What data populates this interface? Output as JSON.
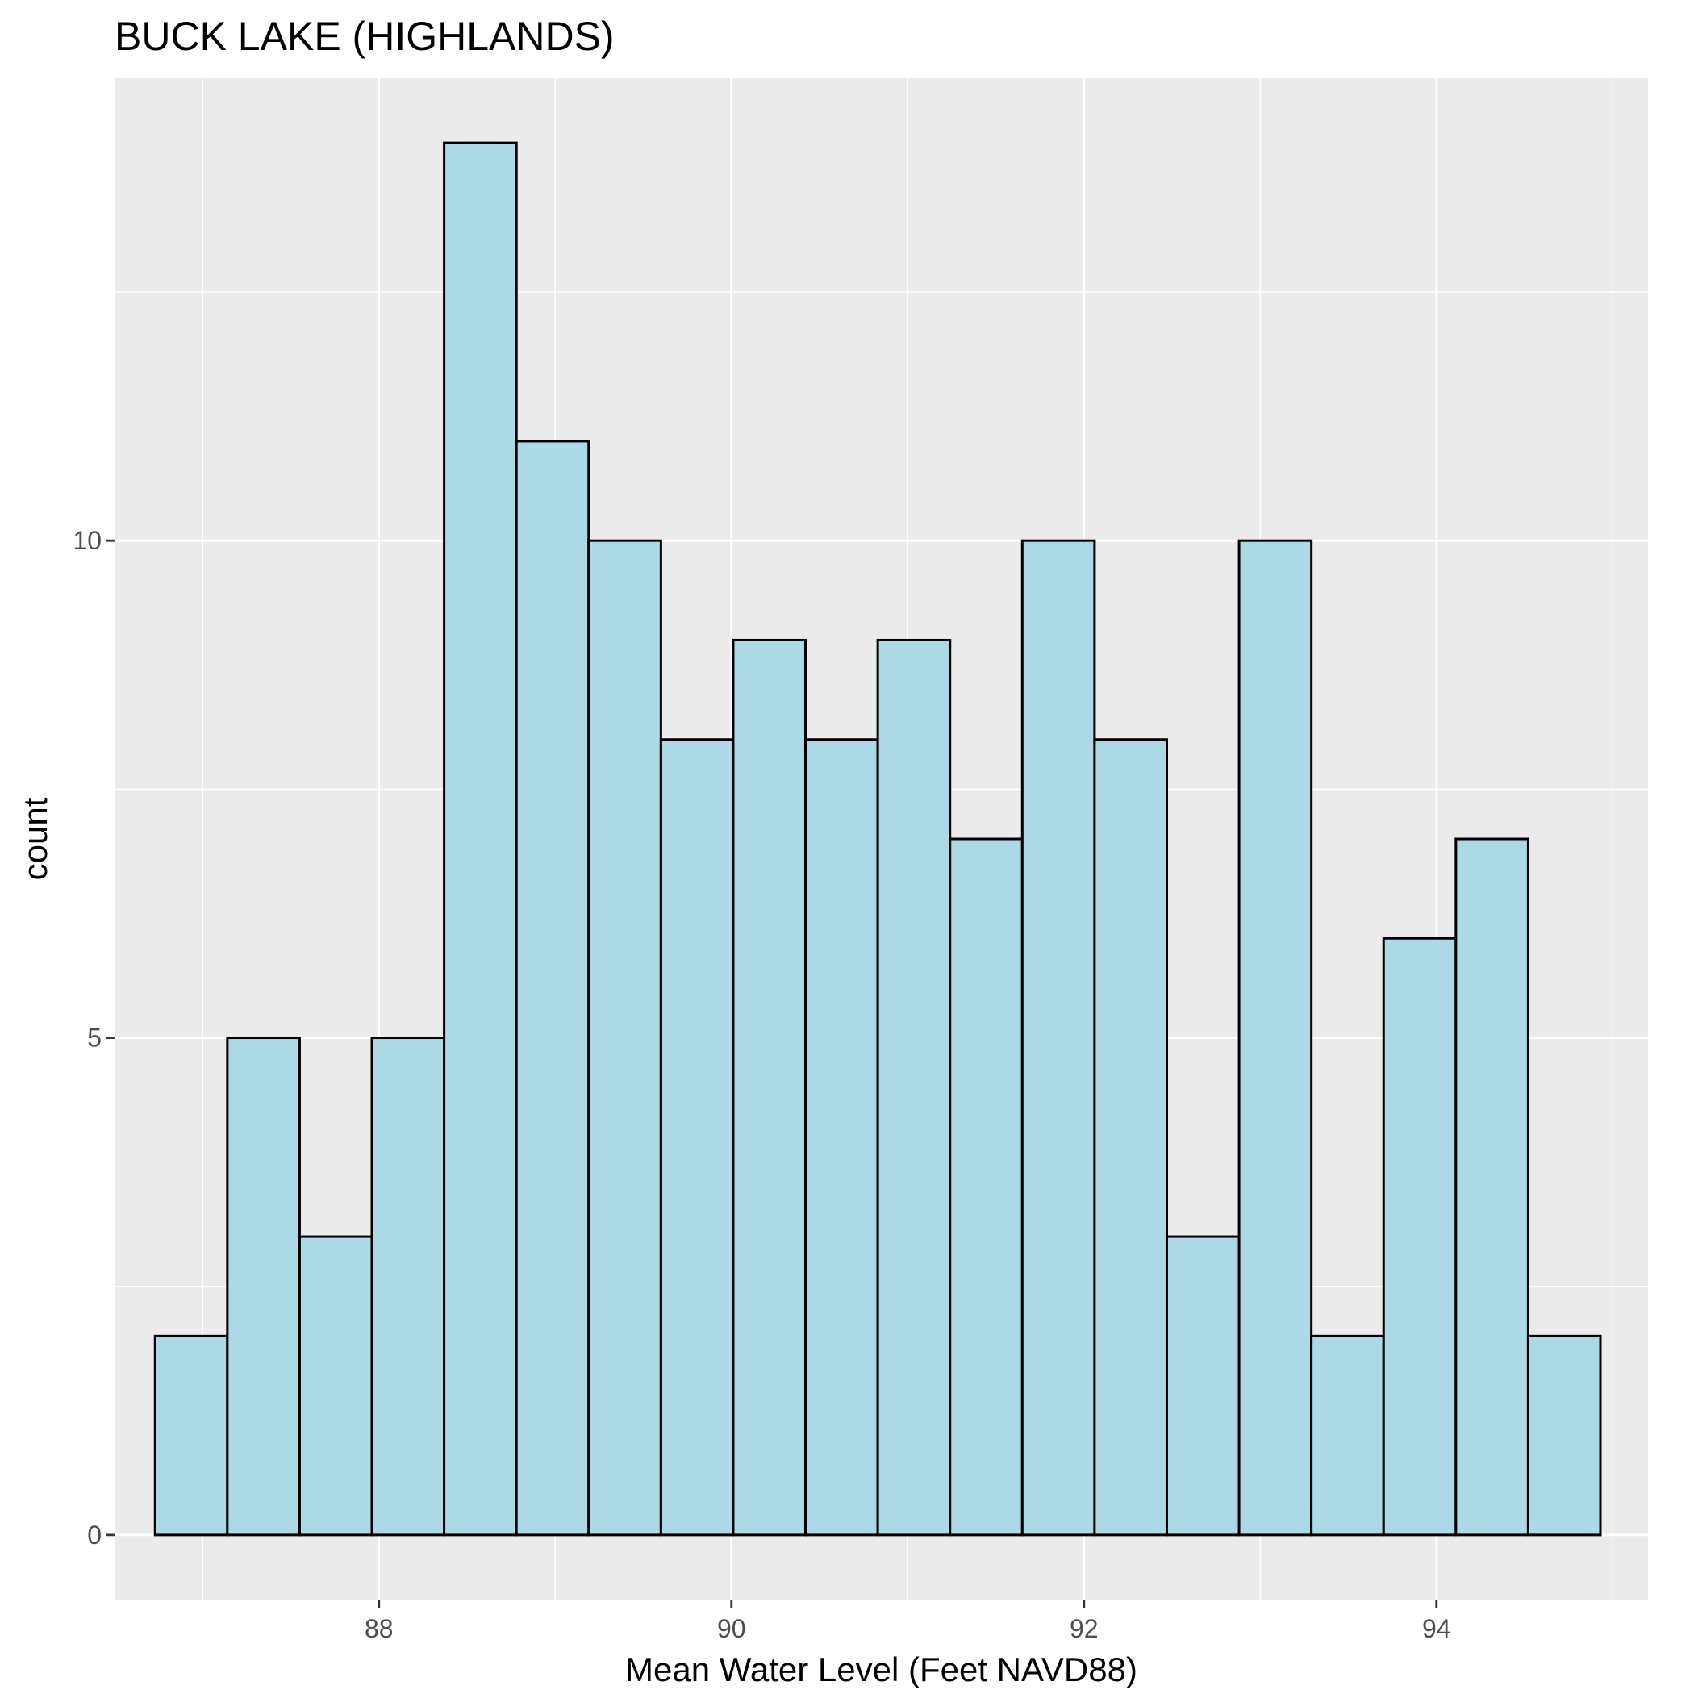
{
  "chart_data": {
    "type": "bar",
    "title": "BUCK LAKE (HIGHLANDS)",
    "xlabel": "Mean Water Level (Feet NAVD88)",
    "ylabel": "count",
    "xlim": [
      86.5,
      95.2
    ],
    "ylim": [
      -0.65,
      14.65
    ],
    "x_ticks": [
      88,
      90,
      92,
      94
    ],
    "x_tick_labels": [
      "88",
      "90",
      "92",
      "94"
    ],
    "y_ticks": [
      0,
      5,
      10
    ],
    "y_tick_labels": [
      "0",
      "5",
      "10"
    ],
    "bin_width": 0.41,
    "bin_starts": [
      86.73,
      87.14,
      87.55,
      87.96,
      88.37,
      88.78,
      89.19,
      89.6,
      90.01,
      90.42,
      90.83,
      91.24,
      91.65,
      92.06,
      92.47,
      92.88,
      93.29,
      93.7,
      94.11,
      94.52
    ],
    "values": [
      2,
      5,
      3,
      5,
      14,
      11,
      10,
      8,
      9,
      8,
      9,
      7,
      10,
      8,
      3,
      10,
      2,
      6,
      7,
      2
    ],
    "grid": true,
    "legend": "none"
  },
  "colors": {
    "panel_background": "#EBEBEB",
    "grid_major": "#FFFFFF",
    "bar_fill": "#ADD8E6",
    "bar_stroke": "#000000",
    "tick_label": "#4D4D4D",
    "text": "#000000"
  }
}
